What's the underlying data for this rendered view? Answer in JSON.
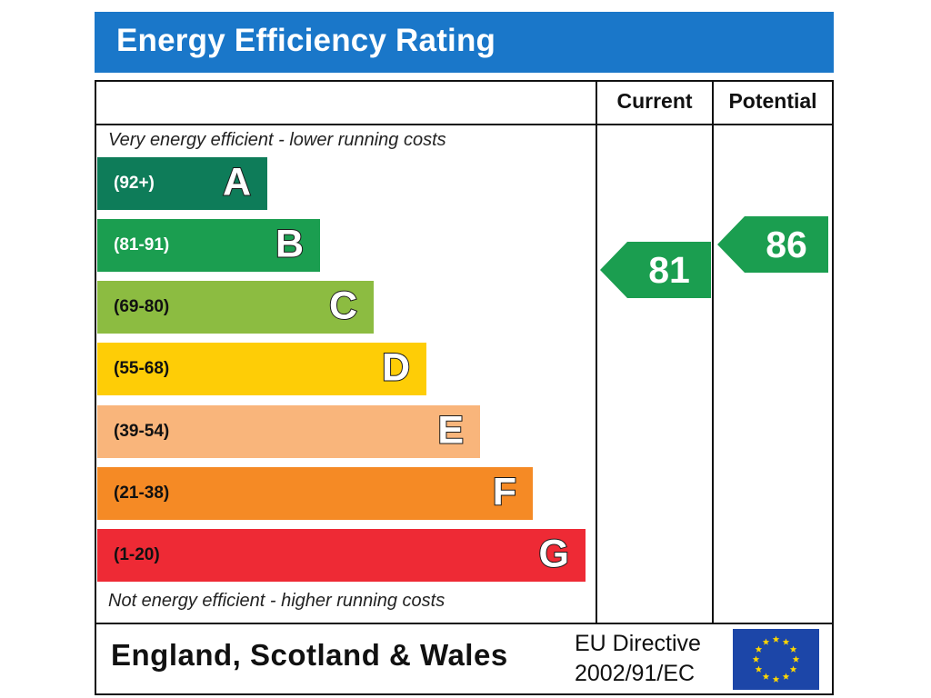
{
  "chart_data": {
    "type": "bar",
    "title": "Energy Efficiency Rating",
    "columns": [
      "Current",
      "Potential"
    ],
    "top_caption": "Very energy efficient - lower running costs",
    "bottom_caption": "Not energy efficient - higher running costs",
    "bands": [
      {
        "letter": "A",
        "range": "(92+)",
        "color": "#0e7c59",
        "text_color": "#ffffff"
      },
      {
        "letter": "B",
        "range": "(81-91)",
        "color": "#1b9e50",
        "text_color": "#ffffff"
      },
      {
        "letter": "C",
        "range": "(69-80)",
        "color": "#8cbc41",
        "text_color": "#111111"
      },
      {
        "letter": "D",
        "range": "(55-68)",
        "color": "#fecd06",
        "text_color": "#111111"
      },
      {
        "letter": "E",
        "range": "(39-54)",
        "color": "#f9b57b",
        "text_color": "#111111"
      },
      {
        "letter": "F",
        "range": "(21-38)",
        "color": "#f58a25",
        "text_color": "#111111"
      },
      {
        "letter": "G",
        "range": "(1-20)",
        "color": "#ee2a35",
        "text_color": "#111111"
      }
    ],
    "current": {
      "value": 81,
      "band": "B",
      "color": "#1b9e50"
    },
    "potential": {
      "value": 86,
      "band": "B",
      "color": "#1b9e50"
    }
  },
  "footer": {
    "country": "England, Scotland & Wales",
    "directive_line1": "EU Directive",
    "directive_line2": "2002/91/EC",
    "flag_color": "#1c46a8",
    "star_color": "#ffd700"
  }
}
